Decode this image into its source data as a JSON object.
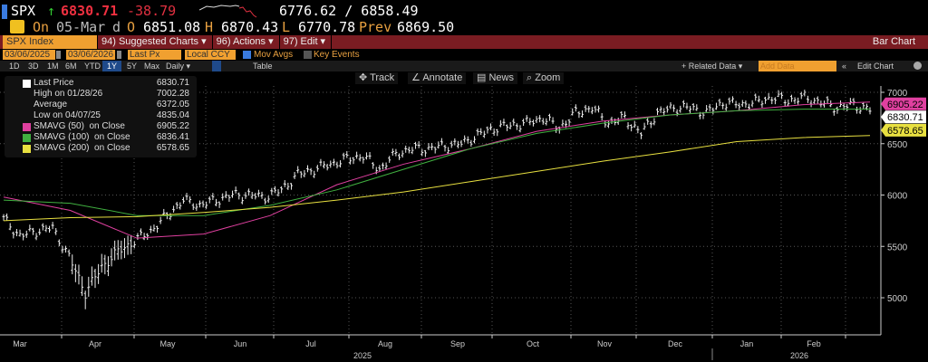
{
  "header": {
    "ticker": "SPX",
    "arrow": "↑",
    "last": "6830.71",
    "change": "-38.79",
    "bid_ask": "6776.62 / 6858.49",
    "on_label": "On",
    "date": "05-Mar",
    "flag": "d",
    "open_label": "O",
    "open": "6851.08",
    "high_label": "H",
    "high": "6870.43",
    "low_label": "L",
    "low": "6770.78",
    "prev_label": "Prev",
    "prev": "6869.50"
  },
  "menu": {
    "security": "SPX Index",
    "suggested": "94) Suggested Charts ▾",
    "actions": "96) Actions ▾",
    "edit": "97) Edit ▾",
    "chart_type": "Bar Chart"
  },
  "controls": {
    "start_date": "03/06/2025",
    "end_date": "03/06/2026",
    "field": "Last Px",
    "currency": "Local CCY",
    "mov_avgs": "Mov Avgs",
    "key_events": "Key Events",
    "periods": [
      "1D",
      "3D",
      "1M",
      "6M",
      "YTD",
      "1Y",
      "5Y",
      "Max"
    ],
    "frequency": "Daily ▾",
    "table": "Table",
    "related": "+ Related Data ▾",
    "add_data_placeholder": "Add Data",
    "collapse": "«",
    "edit_chart": "Edit Chart"
  },
  "tools": {
    "track": "Track",
    "annotate": "Annotate",
    "news": "News",
    "zoom": "Zoom"
  },
  "legend": [
    {
      "label": "Last Price",
      "value": "6830.71",
      "color": "#ffffff"
    },
    {
      "label": "High on 01/28/26",
      "value": "7002.28"
    },
    {
      "label": "Average",
      "value": "6372.05"
    },
    {
      "label": "Low on 04/07/25",
      "value": "4835.04"
    },
    {
      "label": "SMAVG (50)  on Close",
      "value": "6905.22",
      "color": "#e040a0"
    },
    {
      "label": "SMAVG (100)  on Close",
      "value": "6836.41",
      "color": "#40b040"
    },
    {
      "label": "SMAVG (200)  on Close",
      "value": "6578.65",
      "color": "#e8e040"
    }
  ],
  "chart_data": {
    "type": "bar",
    "title": "SPX Index",
    "x_range": [
      "2025-03-06",
      "2026-03-06"
    ],
    "x_ticks": [
      "Mar",
      "Apr",
      "May",
      "Jun",
      "Jul",
      "Aug",
      "Sep",
      "Oct",
      "Nov",
      "Dec",
      "Jan",
      "Feb"
    ],
    "years": [
      "2025",
      "2026"
    ],
    "ylim": [
      4700,
      7100
    ],
    "y_ticks": [
      "5000",
      "5500",
      "6000",
      "6500",
      "7000"
    ],
    "price_weekly_close": [
      5770,
      5600,
      5650,
      5680,
      5400,
      5050,
      5300,
      5450,
      5550,
      5650,
      5800,
      5950,
      5900,
      5950,
      6000,
      6000,
      5980,
      6050,
      6200,
      6250,
      6300,
      6350,
      6380,
      6250,
      6400,
      6450,
      6450,
      6480,
      6500,
      6580,
      6650,
      6680,
      6700,
      6750,
      6650,
      6800,
      6850,
      6700,
      6750,
      6600,
      6800,
      6850,
      6850,
      6800,
      6900,
      6880,
      6900,
      6950,
      6920,
      6950,
      6900,
      6850,
      6880,
      6830
    ],
    "series": [
      {
        "name": "SMAVG (50)",
        "color": "#e040a0",
        "values": [
          5980,
          5850,
          5580,
          5620,
          5800,
          6100,
          6300,
          6450,
          6620,
          6720,
          6780,
          6820,
          6880,
          6905
        ]
      },
      {
        "name": "SMAVG (100)",
        "color": "#40b040",
        "values": [
          5950,
          5920,
          5800,
          5800,
          5900,
          6050,
          6250,
          6450,
          6600,
          6700,
          6780,
          6820,
          6836,
          6836
        ]
      },
      {
        "name": "SMAVG (200)",
        "color": "#e8e040",
        "values": [
          5750,
          5780,
          5790,
          5830,
          5880,
          5950,
          6030,
          6130,
          6230,
          6330,
          6420,
          6520,
          6560,
          6579
        ]
      }
    ],
    "price_tags": [
      {
        "value": 6905.22,
        "label": "6905.22",
        "color": "#e040a0"
      },
      {
        "value": 6830.71,
        "label": "6830.71",
        "color": "#ffffff"
      },
      {
        "value": 6578.65,
        "label": "6578.65",
        "color": "#e8e040"
      }
    ],
    "grid": true
  }
}
